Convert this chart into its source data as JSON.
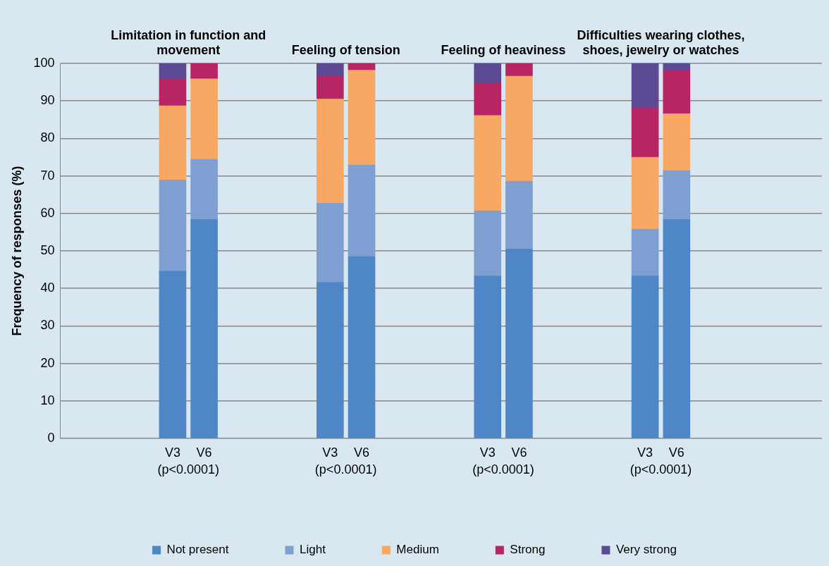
{
  "chart_data": {
    "type": "bar",
    "stacked": true,
    "ylabel": "Frequency of responses (%)",
    "categories": [
      "V3",
      "V6",
      "V3",
      "V6",
      "V3",
      "V6",
      "V3",
      "V6"
    ],
    "annotations": [
      "Limitation in function and movement",
      "Feeling of tension",
      "Feeling of heaviness",
      "Difficulties wearing clothes, shoes, jewelry or watches",
      "(p<0.0001)",
      "(p<0.0001)",
      "(p<0.0001)",
      "(p<0.0001)"
    ],
    "series": [
      {
        "name": "Not present",
        "color": "#4f86c6",
        "values": [
          44.6,
          58.4,
          41.6,
          48.5,
          43.3,
          50.5,
          43.3,
          58.4
        ]
      },
      {
        "name": "Light",
        "color": "#7f9fd3",
        "values": [
          24.3,
          16.0,
          21.1,
          24.4,
          17.4,
          18.1,
          12.5,
          13.0
        ]
      },
      {
        "name": "Medium",
        "color": "#f8a862",
        "values": [
          19.8,
          21.5,
          27.8,
          25.3,
          25.4,
          28.0,
          19.2,
          15.2
        ]
      },
      {
        "name": "Strong",
        "color": "#b82564",
        "values": [
          7.3,
          4.1,
          6.2,
          1.8,
          8.6,
          3.4,
          13.2,
          11.6
        ]
      },
      {
        "name": "Very strong",
        "color": "#5c4a94",
        "values": [
          4.0,
          0,
          3.3,
          0,
          5.3,
          0,
          11.8,
          1.8
        ]
      }
    ],
    "ylim": [
      0,
      100
    ],
    "yticks": [
      0,
      10,
      20,
      30,
      40,
      50,
      60,
      70,
      80,
      90,
      100
    ],
    "grid": "y",
    "legend": "bottom"
  }
}
